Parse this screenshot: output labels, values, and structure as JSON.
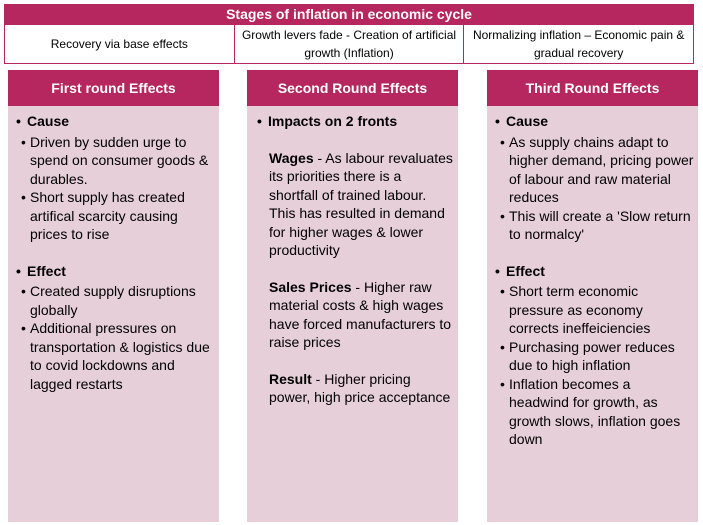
{
  "header": {
    "title": "Stages of inflation in economic cycle"
  },
  "stages": [
    {
      "label": "Recovery via base effects"
    },
    {
      "label": "Growth levers fade - Creation of artificial growth (Inflation)"
    },
    {
      "label": "Normalizing inflation – Economic pain & gradual recovery"
    }
  ],
  "columns": {
    "first": {
      "title": "First round Effects",
      "cause_title": "Cause",
      "cause_items": [
        "Driven by sudden urge to spend on consumer goods & durables.",
        "Short supply has created artifical scarcity causing prices to rise"
      ],
      "effect_title": "Effect",
      "effect_items": [
        "Created supply disruptions globally",
        "Additional pressures on transportation & logistics due to covid lockdowns and lagged restarts"
      ]
    },
    "second": {
      "title": "Second Round Effects",
      "intro": "Impacts on 2 fronts",
      "wages_lead": "Wages",
      "wages_text": " - As labour revaluates its priorities there is a shortfall of trained labour. This has resulted in demand for higher wages & lower productivity",
      "sales_lead": "Sales Prices",
      "sales_text": " - Higher raw material costs & high wages have forced manufacturers to raise prices",
      "result_lead": "Result",
      "result_text": " - Higher pricing power, high price acceptance"
    },
    "third": {
      "title": "Third Round Effects",
      "cause_title": "Cause",
      "cause_items": [
        "As supply chains adapt to higher demand, pricing power of labour and raw material reduces",
        "This will create a 'Slow return to normalcy'"
      ],
      "effect_title": "Effect",
      "effect_items": [
        "Short term economic pressure as economy corrects ineffeiciencies",
        "Purchasing power reduces due to high inflation",
        "Inflation becomes a headwind for growth, as growth slows, inflation goes down"
      ]
    }
  },
  "colors": {
    "accent": "#b5275e",
    "panel": "#e6cfd8"
  }
}
